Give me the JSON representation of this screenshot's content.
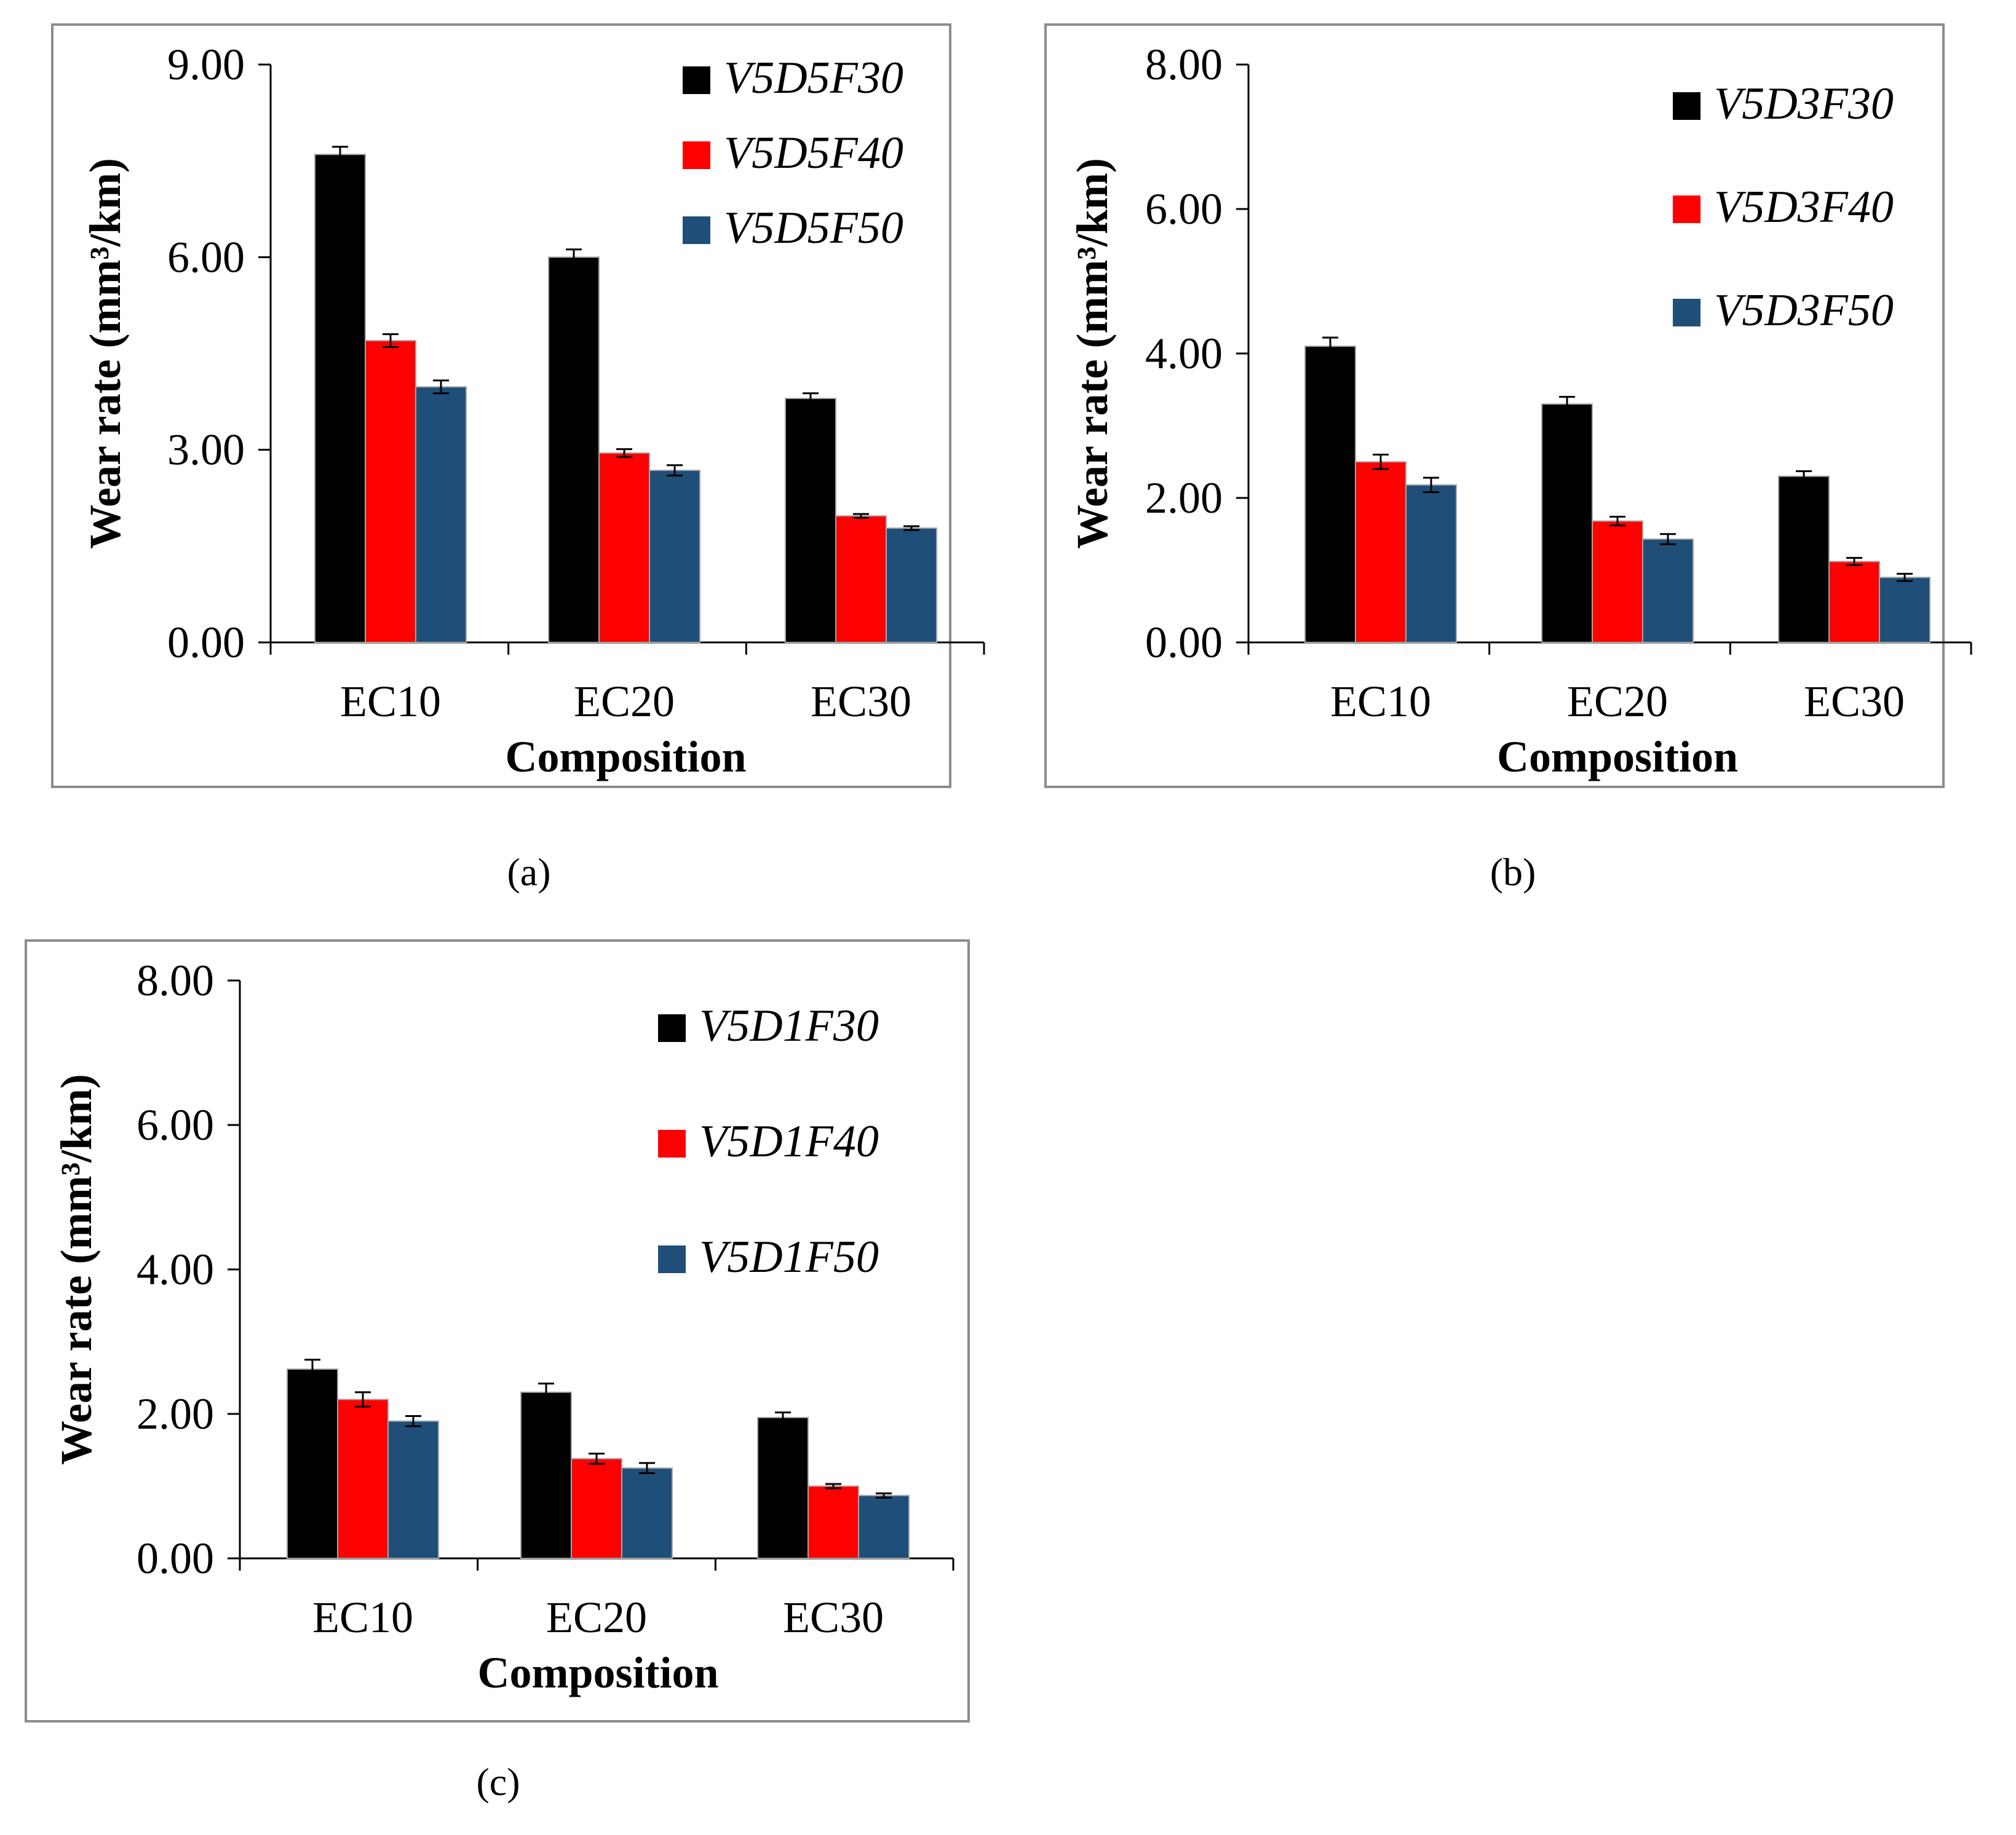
{
  "chart_data": [
    {
      "panel": "(a)",
      "type": "bar",
      "caption": "(a)",
      "xlabel": "Composition",
      "ylabel": "Wear rate (mm³/km)",
      "ylim": [
        0,
        9
      ],
      "yticks": [
        "0.00",
        "3.00",
        "6.00",
        "9.00"
      ],
      "categories": [
        "EC10",
        "EC20",
        "EC30"
      ],
      "legend_position": "top-right",
      "series": [
        {
          "name": "V5D5F30",
          "color": "#000000",
          "values": [
            7.6,
            6.0,
            3.8
          ],
          "errors": [
            0.12,
            0.12,
            0.08
          ]
        },
        {
          "name": "V5D5F40",
          "color": "#ff0000",
          "values": [
            4.7,
            2.95,
            1.97
          ],
          "errors": [
            0.1,
            0.06,
            0.03
          ]
        },
        {
          "name": "V5D5F50",
          "color": "#1f4e79",
          "values": [
            3.98,
            2.68,
            1.78
          ],
          "errors": [
            0.1,
            0.08,
            0.03
          ]
        }
      ]
    },
    {
      "panel": "(b)",
      "type": "bar",
      "caption": "(b)",
      "xlabel": "Composition",
      "ylabel": "Wear rate (mm³/km)",
      "ylim": [
        0,
        8
      ],
      "yticks": [
        "0.00",
        "2.00",
        "4.00",
        "6.00",
        "8.00"
      ],
      "categories": [
        "EC10",
        "EC20",
        "EC30"
      ],
      "legend_position": "top-right",
      "series": [
        {
          "name": "V5D3F30",
          "color": "#000000",
          "values": [
            4.1,
            3.3,
            2.3
          ],
          "errors": [
            0.12,
            0.1,
            0.07
          ]
        },
        {
          "name": "V5D3F40",
          "color": "#ff0000",
          "values": [
            2.5,
            1.68,
            1.12
          ],
          "errors": [
            0.1,
            0.06,
            0.05
          ]
        },
        {
          "name": "V5D3F50",
          "color": "#1f4e79",
          "values": [
            2.18,
            1.43,
            0.9
          ],
          "errors": [
            0.1,
            0.07,
            0.05
          ]
        }
      ]
    },
    {
      "panel": "(c)",
      "type": "bar",
      "caption": "(c)",
      "xlabel": "Composition",
      "ylabel": "Wear rate (mm³/km)",
      "ylim": [
        0,
        8
      ],
      "yticks": [
        "0.00",
        "2.00",
        "4.00",
        "6.00",
        "8.00"
      ],
      "categories": [
        "EC10",
        "EC20",
        "EC30"
      ],
      "legend_position": "top-right",
      "series": [
        {
          "name": "V5D1F30",
          "color": "#000000",
          "values": [
            2.62,
            2.3,
            1.95
          ],
          "errors": [
            0.13,
            0.12,
            0.07
          ]
        },
        {
          "name": "V5D1F40",
          "color": "#ff0000",
          "values": [
            2.2,
            1.38,
            1.0
          ],
          "errors": [
            0.1,
            0.07,
            0.03
          ]
        },
        {
          "name": "V5D1F50",
          "color": "#1f4e79",
          "values": [
            1.9,
            1.25,
            0.87
          ],
          "errors": [
            0.07,
            0.07,
            0.03
          ]
        }
      ]
    }
  ]
}
